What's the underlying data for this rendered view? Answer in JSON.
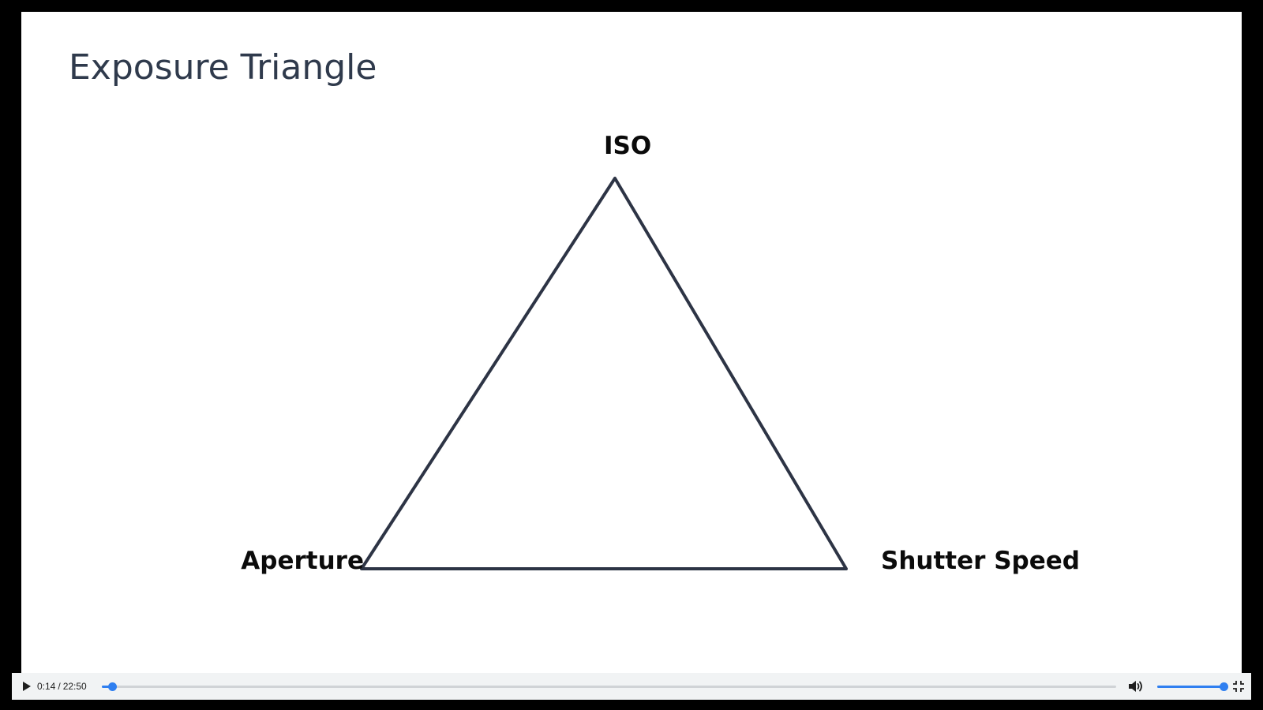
{
  "slide": {
    "title": "Exposure Triangle",
    "diagram": {
      "top_label": "ISO",
      "left_label": "Aperture",
      "right_label": "Shutter Speed",
      "line_color": "#2d3445"
    }
  },
  "player": {
    "current_time": "0:14",
    "time_separator": "/",
    "duration": "22:50",
    "progress_fraction": 0.0102,
    "volume_fraction": 1.0,
    "accent_color": "#2f7ff0",
    "icons": {
      "play": "play-icon",
      "volume": "volume-high-icon",
      "fullscreen": "exit-fullscreen-icon"
    }
  }
}
